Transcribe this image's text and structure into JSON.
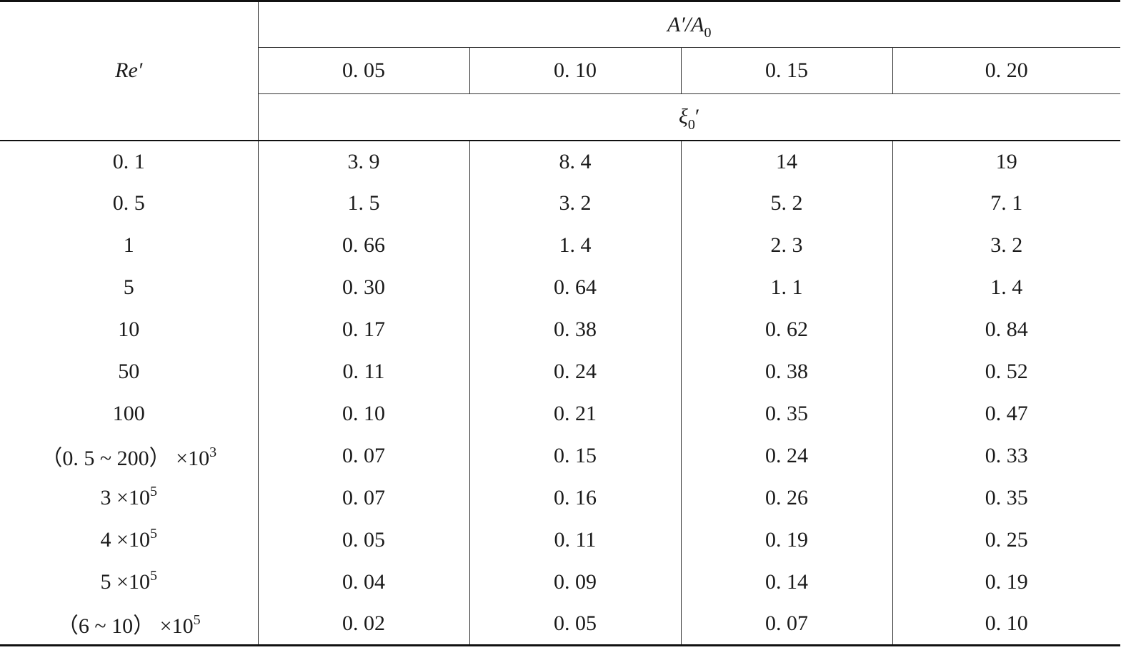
{
  "header": {
    "row_label": "Re′",
    "group_label": "A′/A",
    "group_label_sub": "0",
    "columns": [
      "0. 05",
      "0. 10",
      "0. 15",
      "0. 20"
    ],
    "value_label": "ξ",
    "value_label_sub": "0",
    "value_label_prime": "′"
  },
  "rows": [
    {
      "re": "0. 1",
      "sup": "",
      "v": [
        "3. 9",
        "8. 4",
        "14",
        "19"
      ]
    },
    {
      "re": "0. 5",
      "sup": "",
      "v": [
        "1. 5",
        "3. 2",
        "5. 2",
        "7. 1"
      ]
    },
    {
      "re": "1",
      "sup": "",
      "v": [
        "0. 66",
        "1. 4",
        "2. 3",
        "3. 2"
      ]
    },
    {
      "re": "5",
      "sup": "",
      "v": [
        "0. 30",
        "0. 64",
        "1. 1",
        "1. 4"
      ]
    },
    {
      "re": "10",
      "sup": "",
      "v": [
        "0. 17",
        "0. 38",
        "0. 62",
        "0. 84"
      ]
    },
    {
      "re": "50",
      "sup": "",
      "v": [
        "0. 11",
        "0. 24",
        "0. 38",
        "0. 52"
      ]
    },
    {
      "re": "100",
      "sup": "",
      "v": [
        "0. 10",
        "0. 21",
        "0. 35",
        "0. 47"
      ]
    },
    {
      "re": "（0. 5 ~ 200） ×10",
      "sup": "3",
      "v": [
        "0. 07",
        "0. 15",
        "0. 24",
        "0. 33"
      ]
    },
    {
      "re": "3 ×10",
      "sup": "5",
      "v": [
        "0. 07",
        "0. 16",
        "0. 26",
        "0. 35"
      ]
    },
    {
      "re": "4 ×10",
      "sup": "5",
      "v": [
        "0. 05",
        "0. 11",
        "0. 19",
        "0. 25"
      ]
    },
    {
      "re": "5 ×10",
      "sup": "5",
      "v": [
        "0. 04",
        "0. 09",
        "0. 14",
        "0. 19"
      ]
    },
    {
      "re": "（6 ~ 10） ×10",
      "sup": "5",
      "v": [
        "0. 02",
        "0. 05",
        "0. 07",
        "0. 10"
      ]
    }
  ]
}
